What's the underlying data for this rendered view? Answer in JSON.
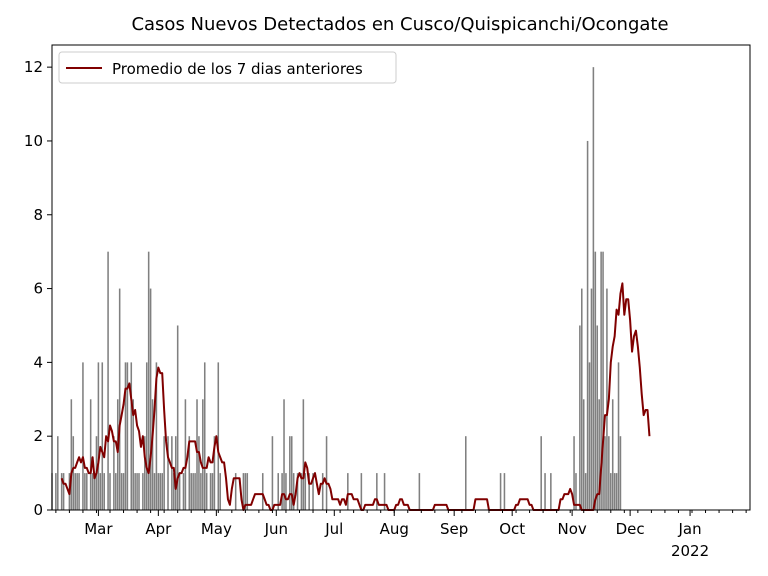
{
  "chart_data": {
    "type": "bar",
    "title": "Casos Nuevos Detectados en Cusco/Quispicanchi/Ocongate",
    "xlabel": "",
    "ylabel": "",
    "ylim": [
      0,
      12.6
    ],
    "xlim": [
      "2020-02-05",
      "2022-02-01"
    ],
    "yticks": [
      0,
      2,
      4,
      6,
      8,
      10,
      12
    ],
    "xticks": [
      {
        "date": "2021-03-01",
        "label": "Mar",
        "sub": ""
      },
      {
        "date": "2021-04-01",
        "label": "Apr",
        "sub": ""
      },
      {
        "date": "2021-05-01",
        "label": "May",
        "sub": ""
      },
      {
        "date": "2021-06-01",
        "label": "Jun",
        "sub": ""
      },
      {
        "date": "2021-07-01",
        "label": "Jul",
        "sub": ""
      },
      {
        "date": "2021-08-01",
        "label": "Aug",
        "sub": ""
      },
      {
        "date": "2021-09-01",
        "label": "Sep",
        "sub": ""
      },
      {
        "date": "2021-10-01",
        "label": "Oct",
        "sub": ""
      },
      {
        "date": "2021-11-01",
        "label": "Nov",
        "sub": ""
      },
      {
        "date": "2021-12-01",
        "label": "Dec",
        "sub": ""
      },
      {
        "date": "2022-01-01",
        "label": "Jan",
        "sub": "2022"
      }
    ],
    "bar_color": "#808080",
    "line_color": "#800000",
    "legend": {
      "position": "top-left",
      "entries": [
        "Promedio de los 7 dias anteriores"
      ]
    },
    "series": [
      {
        "kind": "bar",
        "start": "2021-02-05",
        "values": [
          1,
          0,
          1,
          2,
          0,
          1,
          1,
          0,
          0,
          1,
          3,
          2,
          1,
          1,
          1,
          0,
          4,
          1,
          1,
          0,
          3,
          1,
          1,
          2,
          4,
          1,
          4,
          1,
          0,
          7,
          1,
          0,
          2,
          1,
          3,
          6,
          1,
          1,
          4,
          4,
          0,
          4,
          3,
          1,
          1,
          1,
          0,
          1,
          2,
          4,
          7,
          6,
          3,
          1,
          4,
          1,
          1,
          1,
          2,
          0,
          2,
          0,
          2,
          1,
          2,
          5,
          1,
          0,
          1,
          3,
          0,
          2,
          1,
          1,
          1,
          3,
          2,
          1,
          3,
          4,
          1,
          0,
          1,
          1,
          2,
          0,
          4,
          1,
          0,
          0,
          0,
          0,
          0,
          0,
          0,
          1,
          0,
          0,
          0,
          1,
          1,
          1,
          0,
          0,
          0,
          0,
          0,
          0,
          0,
          1,
          0,
          0,
          0,
          0,
          2,
          0,
          0,
          1,
          0,
          1,
          3,
          1,
          0,
          2,
          2,
          1,
          0,
          1,
          0,
          1,
          3,
          1,
          0,
          1,
          0,
          1,
          0,
          0,
          0,
          0,
          1,
          0,
          2,
          0,
          0,
          0,
          0,
          0,
          0,
          0,
          0,
          0,
          0,
          1,
          0,
          0,
          0,
          0,
          0,
          0,
          1,
          0,
          0,
          0,
          0,
          0,
          0,
          0,
          1,
          0,
          0,
          0,
          1,
          0,
          0,
          0,
          0,
          0,
          0,
          0,
          0,
          0,
          0,
          0,
          0,
          0,
          0,
          0,
          0,
          0,
          1,
          0,
          0,
          0,
          0,
          0,
          0,
          0,
          0,
          0,
          0,
          0,
          0,
          0,
          0,
          0,
          0,
          0,
          0,
          0,
          0,
          0,
          0,
          0,
          2,
          0,
          0,
          0,
          0,
          0,
          0,
          0,
          0,
          0,
          0,
          0,
          0,
          0,
          0,
          0,
          0,
          0,
          1,
          0,
          1,
          0,
          0,
          0,
          0,
          0,
          0,
          0,
          0,
          0,
          0,
          0,
          0,
          0,
          0,
          0,
          0,
          0,
          0,
          2,
          0,
          1,
          0,
          0,
          1,
          0,
          0,
          0,
          0,
          0,
          0,
          0,
          0,
          0,
          0,
          0,
          2,
          1,
          0,
          5,
          6,
          3,
          1,
          10,
          4,
          6,
          12,
          7,
          5,
          3,
          7,
          7,
          2,
          6,
          2,
          1,
          3,
          1,
          1,
          4,
          2
        ]
      },
      {
        "kind": "line",
        "name": "Promedio de los 7 dias anteriores",
        "start": "2021-02-10",
        "values": [
          0.86,
          0.71,
          0.71,
          0.57,
          0.43,
          1.0,
          1.14,
          1.14,
          1.29,
          1.43,
          1.29,
          1.43,
          1.14,
          1.14,
          1.0,
          1.0,
          1.43,
          0.86,
          1.0,
          1.29,
          1.71,
          1.57,
          1.43,
          2.0,
          1.86,
          2.29,
          2.14,
          1.86,
          1.86,
          1.57,
          2.29,
          2.57,
          2.86,
          3.29,
          3.29,
          3.43,
          3.0,
          2.57,
          2.71,
          2.29,
          2.14,
          1.71,
          2.0,
          1.43,
          1.14,
          1.0,
          1.43,
          2.0,
          2.71,
          3.57,
          3.86,
          3.71,
          3.71,
          2.71,
          1.86,
          1.43,
          1.29,
          1.14,
          1.14,
          0.57,
          0.86,
          1.0,
          1.0,
          1.14,
          1.14,
          1.43,
          1.86,
          1.86,
          1.86,
          1.86,
          1.57,
          1.57,
          1.29,
          1.14,
          1.14,
          1.14,
          1.43,
          1.29,
          1.29,
          1.71,
          2.0,
          1.57,
          1.43,
          1.29,
          1.29,
          0.86,
          0.29,
          0.14,
          0.57,
          0.86,
          0.86,
          0.86,
          0.86,
          0.29,
          0.0,
          0.14,
          0.14,
          0.14,
          0.14,
          0.29,
          0.43,
          0.43,
          0.43,
          0.43,
          0.43,
          0.29,
          0.14,
          0.14,
          0.0,
          0.0,
          0.14,
          0.14,
          0.14,
          0.14,
          0.43,
          0.43,
          0.29,
          0.29,
          0.43,
          0.43,
          0.14,
          0.43,
          0.86,
          1.0,
          0.86,
          0.86,
          1.29,
          1.14,
          0.71,
          0.71,
          0.86,
          1.0,
          0.71,
          0.43,
          0.71,
          0.71,
          0.86,
          0.71,
          0.71,
          0.57,
          0.29,
          0.29,
          0.29,
          0.29,
          0.14,
          0.29,
          0.29,
          0.14,
          0.43,
          0.43,
          0.43,
          0.29,
          0.29,
          0.29,
          0.14,
          0.0,
          0.0,
          0.14,
          0.14,
          0.14,
          0.14,
          0.14,
          0.29,
          0.29,
          0.14,
          0.14,
          0.14,
          0.14,
          0.14,
          0.0,
          0.0,
          0.0,
          0.0,
          0.14,
          0.14,
          0.29,
          0.29,
          0.14,
          0.14,
          0.14,
          0.0,
          0.0,
          0.0,
          0.0,
          0.0,
          0.0,
          0.0,
          0.0,
          0.0,
          0.0,
          0.0,
          0.0,
          0.0,
          0.14,
          0.14,
          0.14,
          0.14,
          0.14,
          0.14,
          0.14,
          0.0,
          0.0,
          0.0,
          0.0,
          0.0,
          0.0,
          0.0,
          0.0,
          0.0,
          0.0,
          0.0,
          0.0,
          0.0,
          0.0,
          0.29,
          0.29,
          0.29,
          0.29,
          0.29,
          0.29,
          0.29,
          0.0,
          0.0,
          0.0,
          0.0,
          0.0,
          0.0,
          0.0,
          0.0,
          0.0,
          0.0,
          0.0,
          0.0,
          0.0,
          0.0,
          0.14,
          0.14,
          0.29,
          0.29,
          0.29,
          0.29,
          0.29,
          0.14,
          0.14,
          0.0,
          0.0,
          0.0,
          0.0,
          0.0,
          0.0,
          0.0,
          0.0,
          0.0,
          0.0,
          0.0,
          0.0,
          0.0,
          0.0,
          0.29,
          0.29,
          0.43,
          0.43,
          0.43,
          0.57,
          0.43,
          0.14,
          0.14,
          0.14,
          0.14,
          0.0,
          0.0,
          0.0,
          0.0,
          0.0,
          0.0,
          0.0,
          0.29,
          0.43,
          0.43,
          1.14,
          1.86,
          2.57,
          2.57,
          3.0,
          4.0,
          4.43,
          4.71,
          5.43,
          5.29,
          5.86,
          6.14,
          5.29,
          5.71,
          5.71,
          5.14,
          4.29,
          4.71,
          4.86,
          4.43,
          3.86,
          3.14,
          2.57,
          2.71,
          2.71,
          2.0
        ]
      }
    ]
  }
}
